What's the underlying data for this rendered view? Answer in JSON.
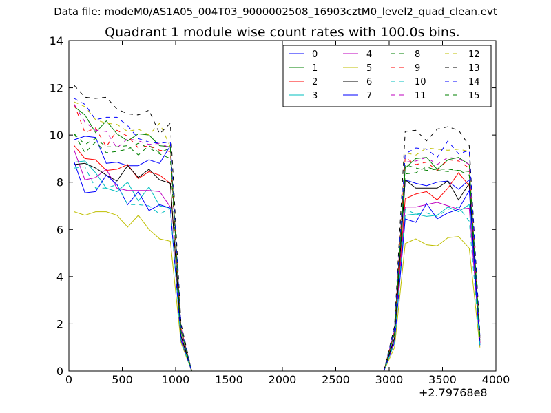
{
  "suptitle": "Data file: modeM0/AS1A05_004T03_9000002508_16903cztM0_level2_quad_clean.evt",
  "chart_data": {
    "type": "line",
    "title": "Quadrant 1 module wise count rates with 100.0s bins.",
    "xlabel": "",
    "ylabel": "",
    "x_offset_label": "+2.79768e8",
    "xlim": [
      0,
      4000
    ],
    "ylim": [
      0,
      14
    ],
    "xticks": [
      0,
      500,
      1000,
      1500,
      2000,
      2500,
      3000,
      3500,
      4000
    ],
    "yticks": [
      0,
      2,
      4,
      6,
      8,
      10,
      12,
      14
    ],
    "grid": false,
    "legend": {
      "placement": "top-right",
      "columns": 4
    },
    "x": [
      50,
      150,
      250,
      350,
      450,
      550,
      650,
      750,
      850,
      950,
      1050,
      1150,
      1250,
      1350,
      1450,
      1550,
      1650,
      1750,
      1850,
      1950,
      2050,
      2150,
      2250,
      2350,
      2450,
      2550,
      2650,
      2750,
      2850,
      2950,
      3050,
      3150,
      3250,
      3350,
      3450,
      3550,
      3650,
      3750,
      3850
    ],
    "series": [
      {
        "name": "0",
        "color": "#0000ff",
        "dash": "solid",
        "values": [
          9.8,
          9.95,
          9.9,
          8.8,
          8.85,
          8.7,
          8.7,
          8.95,
          8.8,
          9.55,
          1.5,
          0,
          0,
          0,
          0,
          0,
          0,
          0,
          0,
          0,
          0,
          0,
          0,
          0,
          0,
          0,
          0,
          0,
          0,
          0,
          1.4,
          8.1,
          7.95,
          7.85,
          8.0,
          8.05,
          7.7,
          8.1,
          1.2
        ]
      },
      {
        "name": "1",
        "color": "#008000",
        "dash": "solid",
        "values": [
          11.2,
          10.85,
          10.1,
          10.6,
          10.05,
          9.75,
          10.05,
          10.0,
          9.55,
          9.5,
          1.8,
          0,
          0,
          0,
          0,
          0,
          0,
          0,
          0,
          0,
          0,
          0,
          0,
          0,
          0,
          0,
          0,
          0,
          0,
          0,
          1.7,
          8.6,
          9.0,
          9.05,
          8.55,
          8.95,
          9.05,
          8.75,
          1.4
        ]
      },
      {
        "name": "2",
        "color": "#ff0000",
        "dash": "solid",
        "values": [
          9.55,
          9.0,
          8.95,
          8.5,
          8.55,
          8.75,
          8.15,
          8.45,
          8.3,
          7.95,
          1.5,
          0,
          0,
          0,
          0,
          0,
          0,
          0,
          0,
          0,
          0,
          0,
          0,
          0,
          0,
          0,
          0,
          0,
          0,
          0,
          1.4,
          7.3,
          7.5,
          7.6,
          7.25,
          7.75,
          8.4,
          7.85,
          1.2
        ]
      },
      {
        "name": "3",
        "color": "#00bfbf",
        "dash": "solid",
        "values": [
          8.85,
          8.9,
          8.4,
          7.75,
          7.6,
          8.0,
          7.2,
          7.8,
          7.0,
          6.9,
          1.3,
          0,
          0,
          0,
          0,
          0,
          0,
          0,
          0,
          0,
          0,
          0,
          0,
          0,
          0,
          0,
          0,
          0,
          0,
          0,
          1.3,
          6.6,
          6.65,
          6.55,
          6.6,
          6.95,
          6.75,
          7.05,
          1.1
        ]
      },
      {
        "name": "4",
        "color": "#bf00bf",
        "dash": "solid",
        "values": [
          9.35,
          8.1,
          8.2,
          8.55,
          7.75,
          7.65,
          7.65,
          7.65,
          7.6,
          6.95,
          1.4,
          0,
          0,
          0,
          0,
          0,
          0,
          0,
          0,
          0,
          0,
          0,
          0,
          0,
          0,
          0,
          0,
          0,
          0,
          0,
          1.3,
          6.95,
          6.95,
          7.05,
          7.15,
          7.0,
          6.85,
          6.9,
          1.2
        ]
      },
      {
        "name": "5",
        "color": "#bfbf00",
        "dash": "solid",
        "values": [
          6.75,
          6.6,
          6.75,
          6.75,
          6.6,
          6.1,
          6.6,
          6.0,
          5.6,
          5.5,
          1.2,
          0,
          0,
          0,
          0,
          0,
          0,
          0,
          0,
          0,
          0,
          0,
          0,
          0,
          0,
          0,
          0,
          0,
          0,
          0,
          1.0,
          5.4,
          5.6,
          5.35,
          5.3,
          5.65,
          5.7,
          5.2,
          1.0
        ]
      },
      {
        "name": "6",
        "color": "#000000",
        "dash": "solid",
        "values": [
          8.75,
          8.8,
          8.6,
          8.3,
          8.05,
          8.7,
          8.2,
          8.55,
          8.1,
          7.95,
          1.5,
          0,
          0,
          0,
          0,
          0,
          0,
          0,
          0,
          0,
          0,
          0,
          0,
          0,
          0,
          0,
          0,
          0,
          0,
          0,
          1.4,
          8.1,
          7.75,
          7.75,
          7.75,
          8.05,
          7.25,
          7.95,
          1.3
        ]
      },
      {
        "name": "7",
        "color": "#0000ff",
        "dash": "solid",
        "values": [
          8.85,
          7.55,
          7.6,
          8.3,
          7.9,
          7.05,
          7.6,
          6.8,
          7.05,
          6.9,
          1.3,
          0,
          0,
          0,
          0,
          0,
          0,
          0,
          0,
          0,
          0,
          0,
          0,
          0,
          0,
          0,
          0,
          0,
          0,
          0,
          1.2,
          6.45,
          6.3,
          7.1,
          6.45,
          6.7,
          6.85,
          7.65,
          1.1
        ]
      },
      {
        "name": "8",
        "color": "#008000",
        "dash": "dashed",
        "values": [
          10.05,
          9.25,
          9.7,
          9.25,
          9.3,
          9.4,
          9.65,
          9.45,
          9.2,
          9.0,
          1.7,
          0,
          0,
          0,
          0,
          0,
          0,
          0,
          0,
          0,
          0,
          0,
          0,
          0,
          0,
          0,
          0,
          0,
          0,
          0,
          1.6,
          8.35,
          8.4,
          8.65,
          8.5,
          8.45,
          8.5,
          8.3,
          1.4
        ]
      },
      {
        "name": "9",
        "color": "#ff0000",
        "dash": "dashed",
        "values": [
          11.3,
          10.1,
          10.3,
          9.5,
          10.2,
          9.95,
          9.45,
          9.55,
          9.35,
          9.3,
          1.8,
          0,
          0,
          0,
          0,
          0,
          0,
          0,
          0,
          0,
          0,
          0,
          0,
          0,
          0,
          0,
          0,
          0,
          0,
          0,
          1.7,
          9.05,
          8.75,
          8.85,
          8.5,
          8.95,
          8.9,
          8.6,
          1.5
        ]
      },
      {
        "name": "10",
        "color": "#00bfbf",
        "dash": "dashed",
        "values": [
          8.6,
          8.65,
          7.75,
          7.75,
          7.9,
          7.05,
          7.05,
          7.0,
          6.65,
          6.9,
          1.3,
          0,
          0,
          0,
          0,
          0,
          0,
          0,
          0,
          0,
          0,
          0,
          0,
          0,
          0,
          0,
          0,
          0,
          0,
          0,
          1.2,
          6.85,
          6.65,
          6.7,
          6.55,
          6.85,
          6.95,
          6.35,
          1.1
        ]
      },
      {
        "name": "11",
        "color": "#bf00bf",
        "dash": "dashed",
        "values": [
          11.3,
          10.55,
          10.2,
          10.15,
          9.45,
          9.85,
          9.75,
          9.6,
          9.65,
          9.45,
          1.8,
          0,
          0,
          0,
          0,
          0,
          0,
          0,
          0,
          0,
          0,
          0,
          0,
          0,
          0,
          0,
          0,
          0,
          0,
          0,
          1.7,
          8.85,
          8.9,
          9.05,
          8.75,
          9.05,
          9.0,
          8.75,
          1.4
        ]
      },
      {
        "name": "12",
        "color": "#bfbf00",
        "dash": "dashed",
        "values": [
          11.4,
          11.2,
          10.65,
          10.5,
          10.45,
          10.15,
          10.25,
          10.0,
          10.5,
          9.5,
          1.9,
          0,
          0,
          0,
          0,
          0,
          0,
          0,
          0,
          0,
          0,
          0,
          0,
          0,
          0,
          0,
          0,
          0,
          0,
          0,
          1.8,
          9.25,
          9.15,
          9.45,
          9.4,
          9.35,
          9.4,
          9.3,
          1.5
        ]
      },
      {
        "name": "13",
        "color": "#000000",
        "dash": "dashed",
        "values": [
          12.1,
          11.6,
          11.55,
          11.6,
          11.1,
          10.9,
          10.85,
          11.05,
          10.05,
          10.5,
          2.0,
          0,
          0,
          0,
          0,
          0,
          0,
          0,
          0,
          0,
          0,
          0,
          0,
          0,
          0,
          0,
          0,
          0,
          0,
          0,
          1.9,
          10.15,
          10.2,
          9.75,
          10.25,
          10.35,
          10.2,
          9.55,
          1.6
        ]
      },
      {
        "name": "14",
        "color": "#0000ff",
        "dash": "dashed",
        "values": [
          11.55,
          11.3,
          10.65,
          10.75,
          10.75,
          10.4,
          9.85,
          9.7,
          9.65,
          9.7,
          1.9,
          0,
          0,
          0,
          0,
          0,
          0,
          0,
          0,
          0,
          0,
          0,
          0,
          0,
          0,
          0,
          0,
          0,
          0,
          0,
          1.8,
          9.2,
          9.45,
          9.4,
          9.05,
          9.75,
          9.2,
          9.35,
          1.5
        ]
      },
      {
        "name": "15",
        "color": "#008000",
        "dash": "dashed",
        "values": [
          10.05,
          9.6,
          9.85,
          9.5,
          9.5,
          9.55,
          9.15,
          9.55,
          9.25,
          9.45,
          1.7,
          0,
          0,
          0,
          0,
          0,
          0,
          0,
          0,
          0,
          0,
          0,
          0,
          0,
          0,
          0,
          0,
          0,
          0,
          0,
          1.6,
          8.75,
          8.6,
          8.5,
          8.55,
          8.55,
          8.5,
          8.45,
          1.4
        ]
      }
    ]
  }
}
